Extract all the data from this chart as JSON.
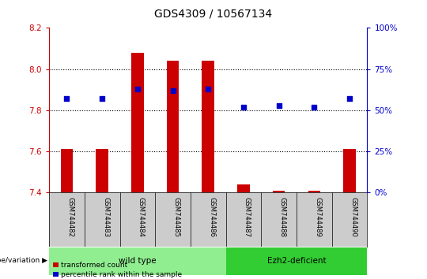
{
  "title": "GDS4309 / 10567134",
  "samples": [
    "GSM744482",
    "GSM744483",
    "GSM744484",
    "GSM744485",
    "GSM744486",
    "GSM744487",
    "GSM744488",
    "GSM744489",
    "GSM744490"
  ],
  "transformed_count": [
    7.61,
    7.61,
    8.08,
    8.04,
    8.04,
    7.44,
    7.41,
    7.41,
    7.61
  ],
  "percentile_rank": [
    57,
    57,
    63,
    62,
    63,
    52,
    53,
    52,
    57
  ],
  "ylim_left": [
    7.4,
    8.2
  ],
  "ylim_right": [
    0,
    100
  ],
  "yticks_left": [
    7.4,
    7.6,
    7.8,
    8.0,
    8.2
  ],
  "yticks_right": [
    0,
    25,
    50,
    75,
    100
  ],
  "groups": [
    {
      "label": "wild type",
      "start": 0,
      "end": 5,
      "color": "#90EE90"
    },
    {
      "label": "Ezh2-deficient",
      "start": 5,
      "end": 9,
      "color": "#32CD32"
    }
  ],
  "bar_color": "#CC0000",
  "dot_color": "#0000CC",
  "bar_bottom": 7.4,
  "background_plot": "#FFFFFF",
  "sample_bg_color": "#CCCCCC",
  "left_axis_color": "#CC0000",
  "right_axis_color": "#0000CC",
  "legend_bar_label": "transformed count",
  "legend_dot_label": "percentile rank within the sample",
  "genotype_label": "genotype/variation"
}
